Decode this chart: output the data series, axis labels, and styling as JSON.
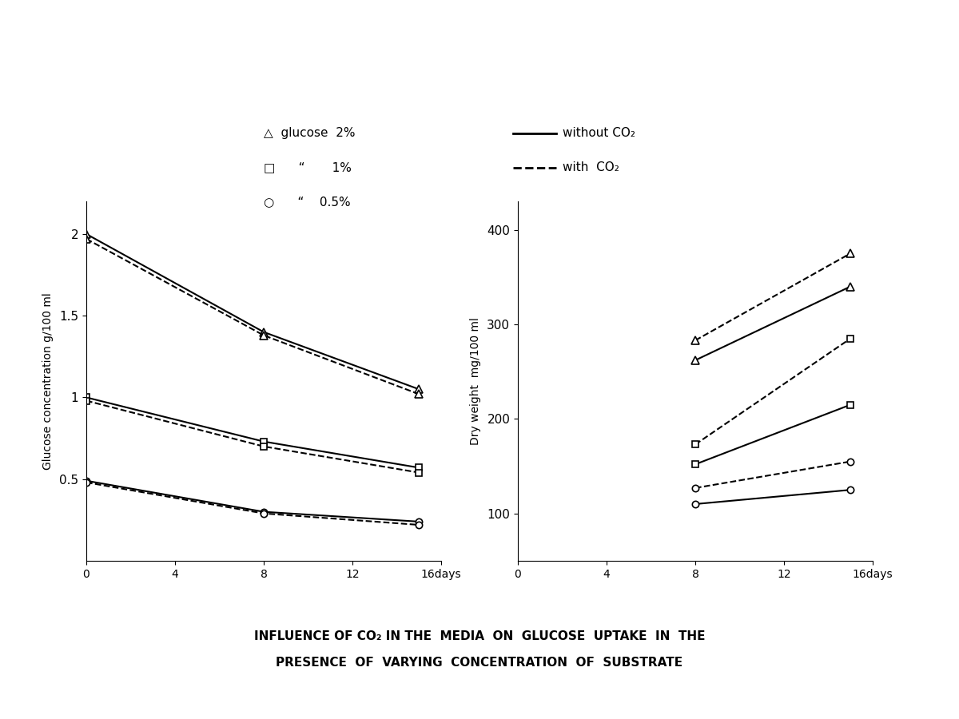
{
  "left_ylabel": "Glucose concentration g/100 ml",
  "right_ylabel": "Dry weight  mg/100 ml",
  "title_line1": "INFLUENCE OF CO₂ IN THE  MEDIA  ON  GLUCOSE  UPTAKE  IN  THE",
  "title_line2": "PRESENCE  OF  VARYING  CONCENTRATION  OF  SUBSTRATE",
  "left_xlim": [
    0,
    16
  ],
  "left_ylim": [
    0,
    2.2
  ],
  "left_xticks": [
    0,
    4,
    8,
    12,
    16
  ],
  "left_yticks": [
    0.5,
    1.0,
    1.5,
    2.0
  ],
  "right_xlim": [
    0,
    16
  ],
  "right_ylim": [
    50,
    430
  ],
  "right_xticks": [
    0,
    4,
    8,
    12,
    16
  ],
  "right_yticks": [
    100,
    200,
    300,
    400
  ],
  "glucose_2pct_solid": {
    "x": [
      0,
      8,
      15
    ],
    "y": [
      2.0,
      1.4,
      1.05
    ]
  },
  "glucose_2pct_dashed": {
    "x": [
      0,
      8,
      15
    ],
    "y": [
      1.97,
      1.38,
      1.02
    ]
  },
  "glucose_1pct_solid": {
    "x": [
      0,
      8,
      15
    ],
    "y": [
      1.0,
      0.73,
      0.57
    ]
  },
  "glucose_1pct_dashed": {
    "x": [
      0,
      8,
      15
    ],
    "y": [
      0.98,
      0.7,
      0.54
    ]
  },
  "glucose_05pct_solid": {
    "x": [
      0,
      8,
      15
    ],
    "y": [
      0.49,
      0.3,
      0.24
    ]
  },
  "glucose_05pct_dashed": {
    "x": [
      0,
      8,
      15
    ],
    "y": [
      0.48,
      0.29,
      0.22
    ]
  },
  "dry_2pct_solid": {
    "x": [
      8,
      15
    ],
    "y": [
      262,
      340
    ]
  },
  "dry_2pct_dashed": {
    "x": [
      8,
      15
    ],
    "y": [
      283,
      375
    ]
  },
  "dry_1pct_solid": {
    "x": [
      8,
      15
    ],
    "y": [
      152,
      215
    ]
  },
  "dry_1pct_dashed": {
    "x": [
      8,
      15
    ],
    "y": [
      173,
      285
    ]
  },
  "dry_05pct_solid": {
    "x": [
      8,
      15
    ],
    "y": [
      110,
      125
    ]
  },
  "dry_05pct_dashed": {
    "x": [
      8,
      15
    ],
    "y": [
      127,
      155
    ]
  },
  "bg_color": "#ffffff",
  "line_color": "#000000"
}
